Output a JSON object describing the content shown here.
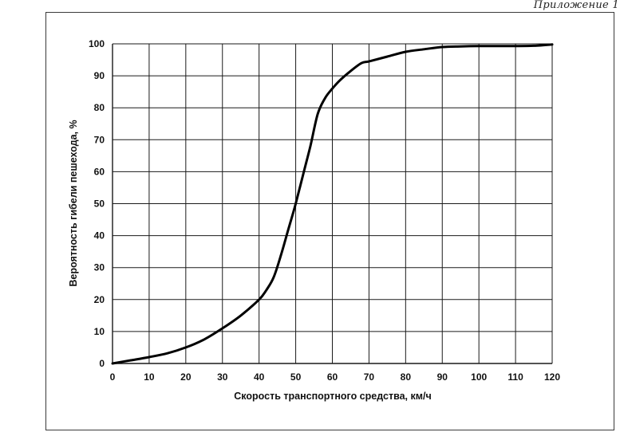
{
  "page": {
    "header_note": "Приложение 1"
  },
  "chart_data": {
    "type": "line",
    "xlabel": "Скорость транспортного средства, км/ч",
    "ylabel": "Вероятность гибели пешехода, %",
    "xlim": [
      0,
      120
    ],
    "ylim": [
      0,
      100
    ],
    "x_ticks": [
      "0",
      "10",
      "20",
      "30",
      "40",
      "50",
      "60",
      "70",
      "80",
      "90",
      "100",
      "110",
      "120"
    ],
    "y_ticks": [
      "0",
      "10",
      "20",
      "30",
      "40",
      "50",
      "60",
      "70",
      "80",
      "90",
      "100"
    ],
    "grid": true,
    "series": [
      {
        "x": [
          0,
          5,
          10,
          15,
          20,
          25,
          30,
          35,
          40,
          42,
          44,
          46,
          48,
          50,
          52,
          54,
          56,
          58,
          60,
          62,
          65,
          68,
          70,
          75,
          80,
          85,
          90,
          95,
          100,
          110,
          115,
          120
        ],
        "y": [
          0,
          1,
          2,
          3.2,
          5,
          7.5,
          11,
          15,
          20,
          23,
          27,
          34,
          42,
          50,
          59,
          68,
          78,
          83,
          86,
          88.5,
          91.5,
          94,
          94.5,
          96,
          97.5,
          98.3,
          99,
          99.2,
          99.3,
          99.3,
          99.4,
          99.8
        ]
      }
    ]
  }
}
